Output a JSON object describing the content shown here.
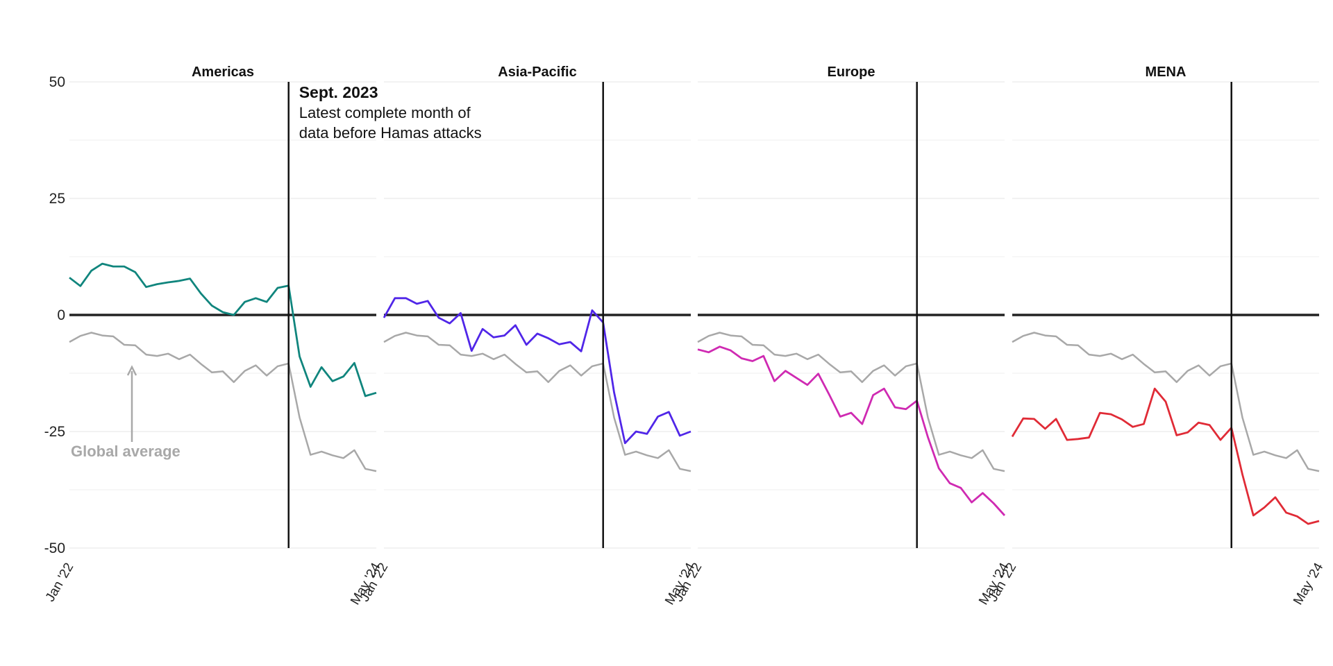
{
  "chart_data": {
    "type": "line",
    "x": [
      "Jan '22",
      "Feb '22",
      "Mar '22",
      "Apr '22",
      "May '22",
      "Jun '22",
      "Jul '22",
      "Aug '22",
      "Sep '22",
      "Oct '22",
      "Nov '22",
      "Dec '22",
      "Jan '23",
      "Feb '23",
      "Mar '23",
      "Apr '23",
      "May '23",
      "Jun '23",
      "Jul '23",
      "Aug '23",
      "Sep '23",
      "Oct '23",
      "Nov '23",
      "Dec '23",
      "Jan '24",
      "Feb '24",
      "Mar '24",
      "Apr '24",
      "May '24"
    ],
    "x_tick_labels": [
      "Jan '22",
      "May '24"
    ],
    "y_ticks": [
      50,
      25,
      0,
      -25,
      -50
    ],
    "y_tick_labels": [
      "50",
      "25",
      "0",
      "-25",
      "-50"
    ],
    "ylim": [
      -50,
      50
    ],
    "grid": true,
    "reference_series": {
      "name": "Global average",
      "color": "#a8a8a8",
      "values": [
        -5.8,
        -4.5,
        -3.8,
        -4.4,
        -4.6,
        -6.4,
        -6.5,
        -8.5,
        -8.8,
        -8.3,
        -9.5,
        -8.5,
        -10.5,
        -12.3,
        -12.1,
        -14.4,
        -12.0,
        -10.8,
        -13.0,
        -11.0,
        -10.4,
        -22.0,
        -30.0,
        -29.3,
        -30.1,
        -30.7,
        -29.0,
        -33.0,
        -33.5
      ]
    },
    "panels": [
      {
        "title": "Americas",
        "color": "#10857d",
        "values": [
          8.0,
          6.2,
          9.5,
          11.0,
          10.4,
          10.4,
          9.2,
          6.0,
          6.6,
          7.0,
          7.3,
          7.8,
          4.6,
          2.0,
          0.6,
          0,
          2.8,
          3.6,
          2.8,
          5.8,
          6.3,
          -8.9,
          -15.4,
          -11.2,
          -14.2,
          -13.2,
          -10.3,
          -17.4,
          -16.7
        ]
      },
      {
        "title": "Asia-Pacific",
        "color": "#5026e8",
        "values": [
          -0.6,
          3.6,
          3.6,
          2.4,
          3.0,
          -0.6,
          -1.8,
          0.4,
          -7.7,
          -3.0,
          -4.8,
          -4.4,
          -2.2,
          -6.4,
          -4.0,
          -5.0,
          -6.3,
          -5.8,
          -7.8,
          1.0,
          -1.6,
          -16.6,
          -27.5,
          -25.0,
          -25.5,
          -21.8,
          -20.8,
          -25.9,
          -25.0
        ]
      },
      {
        "title": "Europe",
        "color": "#cf2ab2",
        "values": [
          -7.4,
          -8.0,
          -6.8,
          -7.6,
          -9.3,
          -9.9,
          -8.8,
          -14.2,
          -12.0,
          -13.5,
          -15.0,
          -12.6,
          -17.1,
          -21.8,
          -21.0,
          -23.4,
          -17.2,
          -15.8,
          -19.8,
          -20.2,
          -18.4,
          -26.2,
          -32.9,
          -36.1,
          -37.1,
          -40.2,
          -38.2,
          -40.4,
          -43.0
        ]
      },
      {
        "title": "MENA",
        "color": "#e02b36",
        "values": [
          -26.1,
          -22.2,
          -22.3,
          -24.4,
          -22.3,
          -26.8,
          -26.6,
          -26.3,
          -21.0,
          -21.3,
          -22.4,
          -24.0,
          -23.4,
          -15.8,
          -18.6,
          -25.8,
          -25.2,
          -23.1,
          -23.6,
          -26.8,
          -24.2,
          -34.2,
          -43.0,
          -41.3,
          -39.1,
          -42.4,
          -43.2,
          -44.8,
          -44.2
        ]
      }
    ],
    "marker": {
      "x": "Sep '23",
      "title": "Sept. 2023",
      "lines": [
        "Latest complete month of",
        "data before Hamas attacks"
      ]
    },
    "reference_label": "Global average"
  }
}
